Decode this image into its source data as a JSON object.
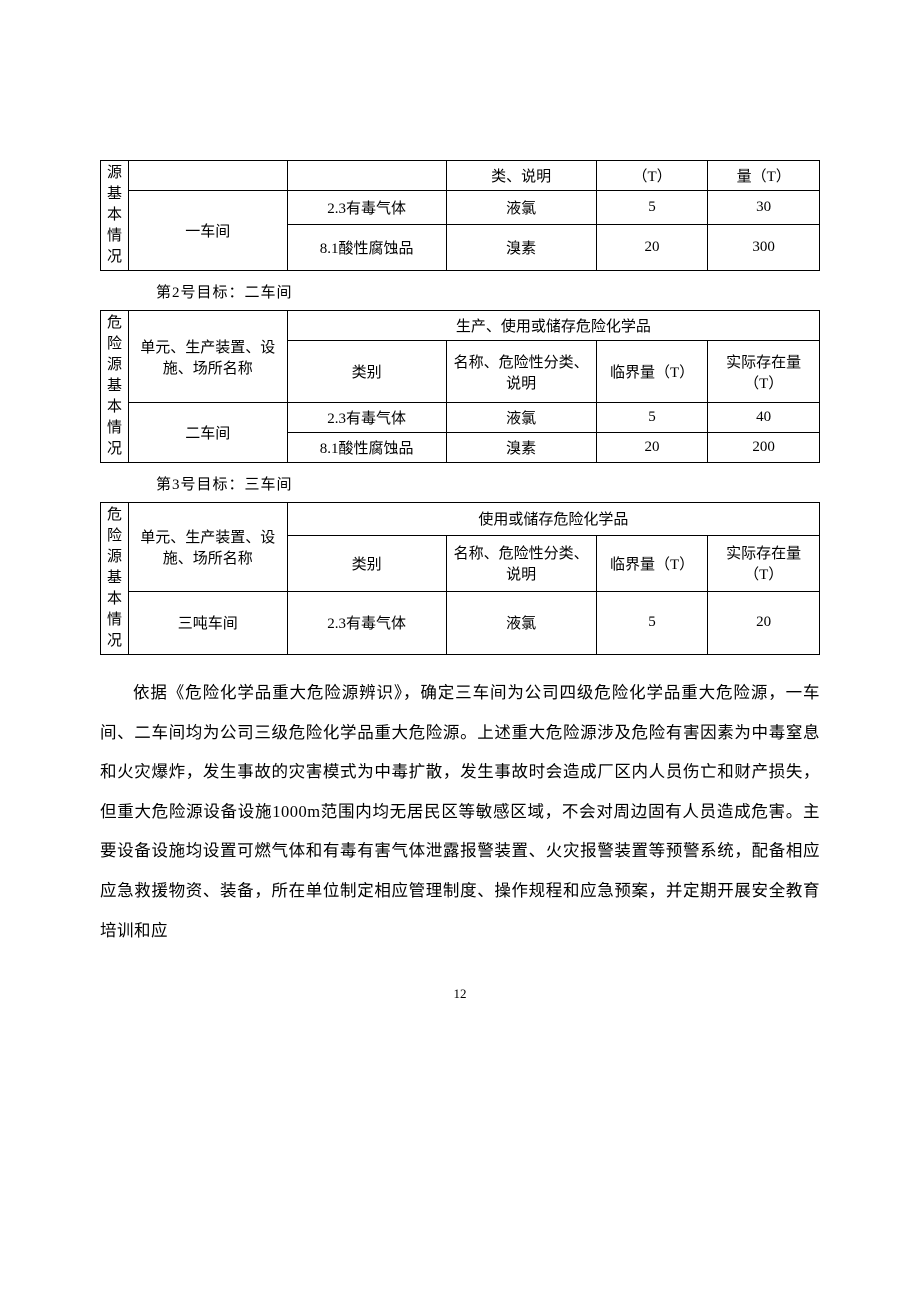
{
  "table1": {
    "side_label_chars": [
      "源",
      "基",
      "本",
      "情",
      "况"
    ],
    "head_row1": [
      "",
      "类、说明",
      "（T）",
      "量（T）"
    ],
    "unit": "一车间",
    "rows": [
      {
        "cat": "2.3有毒气体",
        "name": "液氯",
        "limit": "5",
        "actual": "30"
      },
      {
        "cat": "8.1酸性腐蚀品",
        "name": "溴素",
        "limit": "20",
        "actual": "300"
      }
    ]
  },
  "caption2": "第2号目标：二车间",
  "table2": {
    "side_label_chars": [
      "危",
      "险",
      "源",
      "基",
      "本",
      "情",
      "况"
    ],
    "group_header": "生产、使用或储存危险化学品",
    "unit_header": "单元、生产装置、设施、场所名称",
    "cat_header": "类别",
    "name_header": "名称、危险性分类、说明",
    "limit_header": "临界量（T）",
    "actual_header": "实际存在量（T）",
    "unit": "二车间",
    "rows": [
      {
        "cat": "2.3有毒气体",
        "name": "液氯",
        "limit": "5",
        "actual": "40"
      },
      {
        "cat": "8.1酸性腐蚀品",
        "name": "溴素",
        "limit": "20",
        "actual": "200"
      }
    ]
  },
  "caption3": "第3号目标：三车间",
  "table3": {
    "side_label_chars": [
      "危",
      "险",
      "源",
      "基",
      "本",
      "情",
      "况"
    ],
    "group_header": "使用或储存危险化学品",
    "unit_header": "单元、生产装置、设施、场所名称",
    "cat_header": "类别",
    "name_header": "名称、危险性分类、说明",
    "limit_header": "临界量（T）",
    "actual_header": "实际存在量（T）",
    "unit": "三吨车间",
    "rows": [
      {
        "cat": "2.3有毒气体",
        "name": "液氯",
        "limit": "5",
        "actual": "20"
      }
    ]
  },
  "paragraph": "依据《危险化学品重大危险源辨识》，确定三车间为公司四级危险化学品重大危险源，一车间、二车间均为公司三级危险化学品重大危险源。上述重大危险源涉及危险有害因素为中毒窒息和火灾爆炸，发生事故的灾害模式为中毒扩散，发生事故时会造成厂区内人员伤亡和财产损失，但重大危险源设备设施1000m范围内均无居民区等敏感区域，不会对周边固有人员造成危害。主要设备设施均设置可燃气体和有毒有害气体泄露报警装置、火灾报警装置等预警系统，配备相应应急救援物资、装备，所在单位制定相应管理制度、操作规程和应急预案，并定期开展安全教育培训和应",
  "page_number": "12"
}
